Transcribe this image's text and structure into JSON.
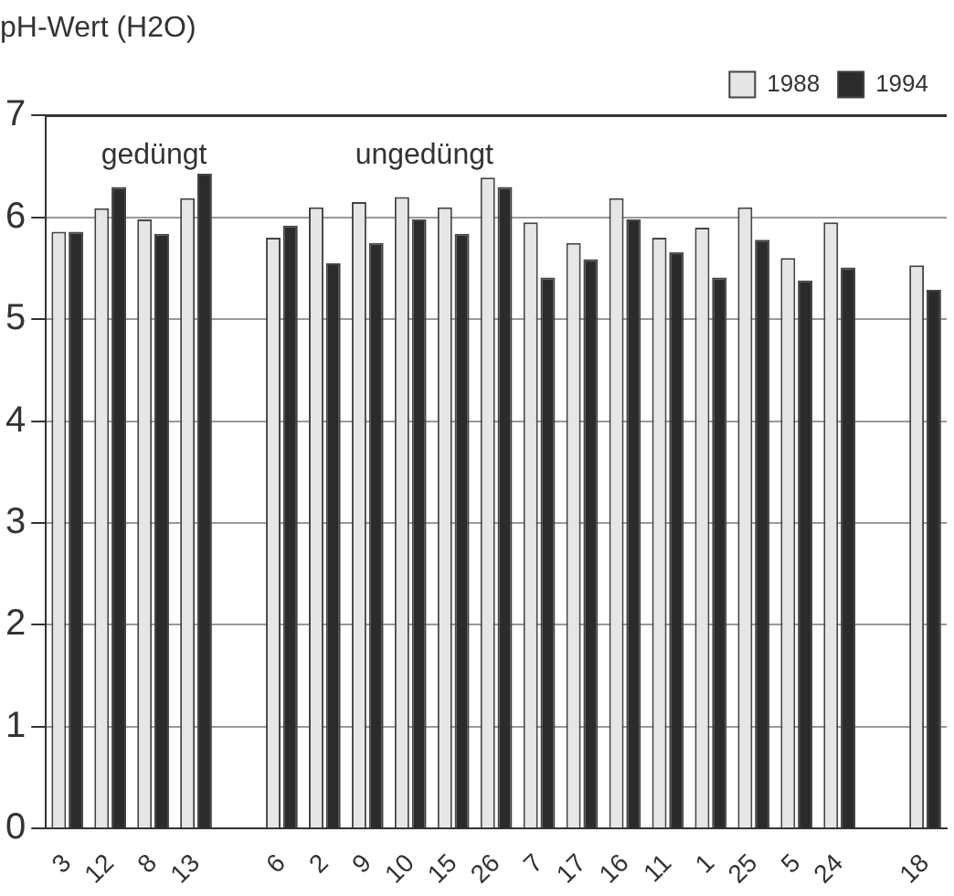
{
  "chart_data": {
    "type": "bar",
    "title": "pH-Wert (H2O)",
    "categories": [
      "3",
      "12",
      "8",
      "13",
      null,
      "6",
      "2",
      "9",
      "10",
      "15",
      "26",
      "7",
      "17",
      "16",
      "11",
      "1",
      "25",
      "5",
      "24",
      null,
      "18"
    ],
    "series": [
      {
        "name": "1988",
        "color": "#e6e6e6",
        "values": [
          5.86,
          6.09,
          5.98,
          6.19,
          null,
          5.8,
          6.1,
          6.15,
          6.2,
          6.1,
          6.39,
          5.95,
          5.75,
          6.19,
          5.8,
          5.9,
          6.1,
          5.6,
          5.95,
          null,
          5.53
        ]
      },
      {
        "name": "1994",
        "color": "#2b2b2b",
        "values": [
          5.86,
          6.3,
          5.84,
          6.43,
          null,
          5.92,
          5.55,
          5.75,
          5.98,
          5.84,
          6.3,
          5.41,
          5.59,
          5.98,
          5.66,
          5.41,
          5.78,
          5.38,
          5.51,
          null,
          5.29
        ]
      }
    ],
    "ylim": [
      0,
      7
    ],
    "yticks": [
      0,
      1,
      2,
      3,
      4,
      5,
      6,
      7
    ],
    "grid": "y",
    "legend": "top right",
    "annotations": [
      "gedüngt",
      "ungedüngt"
    ]
  }
}
